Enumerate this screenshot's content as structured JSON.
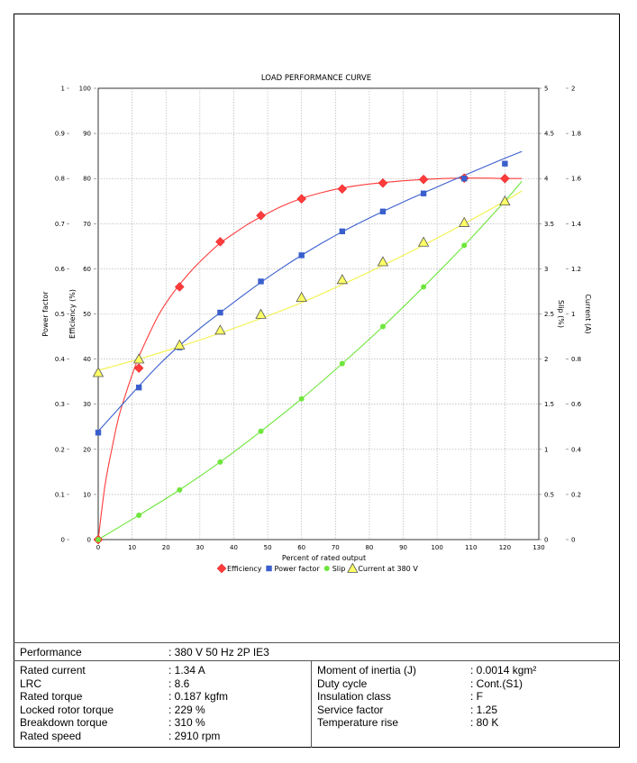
{
  "chart_data": {
    "type": "line",
    "title": "LOAD PERFORMANCE CURVE",
    "xlabel": "Percent of rated output",
    "xlim": [
      0,
      130
    ],
    "xticks": [
      0,
      10,
      20,
      30,
      40,
      50,
      60,
      70,
      80,
      90,
      100,
      110,
      120,
      130
    ],
    "grid": true,
    "legend_position": "bottom",
    "axes": {
      "power_factor": {
        "label": "Power factor",
        "side": "left-outer",
        "ylim": [
          0,
          1
        ],
        "ticks": [
          "0",
          "0.1",
          "0.2",
          "0.3",
          "0.4",
          "0.5",
          "0.6",
          "0.7",
          "0.8",
          "0.9",
          "1"
        ]
      },
      "efficiency": {
        "label": "Efficiency (%)",
        "side": "left-inner",
        "ylim": [
          0,
          100
        ],
        "ticks": [
          "0",
          "10",
          "20",
          "30",
          "40",
          "50",
          "60",
          "70",
          "80",
          "90",
          "100"
        ]
      },
      "slip": {
        "label": "Slip (%)",
        "side": "right-inner",
        "ylim": [
          0,
          5
        ],
        "ticks": [
          "0",
          "0.5",
          "1",
          "1.5",
          "2",
          "2.5",
          "3",
          "3.5",
          "4",
          "4.5",
          "5"
        ]
      },
      "current": {
        "label": "Current (A)",
        "side": "right-outer",
        "ylim": [
          0,
          2
        ],
        "ticks": [
          "0",
          "0.2",
          "0.4",
          "0.6",
          "0.8",
          "1",
          "1.2",
          "1.4",
          "1.6",
          "1.8",
          "2"
        ]
      }
    },
    "series": [
      {
        "name": "Efficiency",
        "axis": "efficiency",
        "color": "#ff3b3b",
        "marker": "diamond",
        "x": [
          0,
          12,
          24,
          36,
          48,
          60,
          72,
          84,
          96,
          108,
          120
        ],
        "y": [
          0,
          38,
          56,
          66,
          71.8,
          75.5,
          77.7,
          79,
          79.8,
          80.1,
          80
        ],
        "curve_x": [
          0,
          2,
          4,
          6,
          8,
          10,
          12,
          15,
          18,
          21,
          24,
          28,
          32,
          36,
          40,
          44,
          48,
          54,
          60,
          66,
          72,
          78,
          84,
          90,
          96,
          102,
          108,
          114,
          120,
          125
        ],
        "curve_y": [
          0,
          12,
          20,
          27,
          32,
          36.5,
          40.5,
          45.5,
          50,
          53.5,
          56.5,
          60,
          63,
          65.7,
          67.8,
          69.8,
          71.5,
          73.8,
          75.6,
          76.9,
          77.9,
          78.6,
          79.1,
          79.5,
          79.8,
          80,
          80.1,
          80.1,
          80,
          80
        ]
      },
      {
        "name": "Power factor",
        "axis": "power_factor",
        "color": "#3a5fcd",
        "marker": "square",
        "x": [
          0,
          12,
          24,
          36,
          48,
          60,
          72,
          84,
          96,
          108,
          120
        ],
        "y": [
          0.237,
          0.337,
          0.426,
          0.503,
          0.572,
          0.63,
          0.683,
          0.727,
          0.767,
          0.8,
          0.833
        ],
        "curve_x": [
          0,
          6,
          12,
          18,
          24,
          30,
          36,
          42,
          48,
          54,
          60,
          66,
          72,
          78,
          84,
          90,
          96,
          102,
          108,
          114,
          120,
          125
        ],
        "curve_y": [
          0.24,
          0.29,
          0.34,
          0.388,
          0.43,
          0.468,
          0.503,
          0.537,
          0.57,
          0.601,
          0.63,
          0.657,
          0.682,
          0.705,
          0.727,
          0.748,
          0.768,
          0.788,
          0.807,
          0.826,
          0.845,
          0.86
        ]
      },
      {
        "name": "Slip",
        "axis": "slip",
        "color": "#6ee63c",
        "marker": "circle",
        "x": [
          0,
          12,
          24,
          36,
          48,
          60,
          72,
          84,
          96,
          108,
          120
        ],
        "y": [
          0,
          0.27,
          0.55,
          0.86,
          1.2,
          1.56,
          1.95,
          2.36,
          2.8,
          3.26,
          3.75
        ],
        "curve_x": [
          0,
          12,
          24,
          36,
          48,
          60,
          72,
          84,
          96,
          108,
          120,
          125
        ],
        "curve_y": [
          0,
          0.27,
          0.55,
          0.86,
          1.2,
          1.56,
          1.95,
          2.36,
          2.8,
          3.26,
          3.75,
          3.97
        ]
      },
      {
        "name": "Current at 380 V",
        "axis": "current",
        "color": "#ffff66",
        "marker": "triangle",
        "x": [
          0,
          12,
          24,
          36,
          48,
          60,
          72,
          84,
          96,
          108,
          120
        ],
        "y": [
          0.74,
          0.8,
          0.862,
          0.928,
          0.998,
          1.073,
          1.152,
          1.231,
          1.318,
          1.405,
          1.5
        ],
        "curve_x": [
          0,
          12,
          24,
          36,
          48,
          60,
          72,
          84,
          96,
          108,
          120,
          125
        ],
        "curve_y": [
          0.75,
          0.8,
          0.855,
          0.915,
          0.98,
          1.05,
          1.13,
          1.215,
          1.305,
          1.4,
          1.5,
          1.545
        ]
      }
    ]
  },
  "specs": {
    "performance_label": "Performance",
    "performance_value": ": 380 V 50 Hz 2P IE3",
    "left": [
      {
        "label": "Rated current",
        "value": ": 1.34 A"
      },
      {
        "label": "LRC",
        "value": ": 8.6"
      },
      {
        "label": "Rated torque",
        "value": ": 0.187 kgfm"
      },
      {
        "label": "Locked rotor torque",
        "value": ": 229 %"
      },
      {
        "label": "Breakdown torque",
        "value": ": 310 %"
      },
      {
        "label": "Rated speed",
        "value": ": 2910 rpm"
      }
    ],
    "right": [
      {
        "label": "Moment of inertia (J)",
        "value": ": 0.0014 kgm²"
      },
      {
        "label": "Duty cycle",
        "value": ": Cont.(S1)"
      },
      {
        "label": "Insulation class",
        "value": ": F"
      },
      {
        "label": "Service factor",
        "value": ": 1.25"
      },
      {
        "label": "Temperature rise",
        "value": ": 80 K"
      }
    ]
  }
}
